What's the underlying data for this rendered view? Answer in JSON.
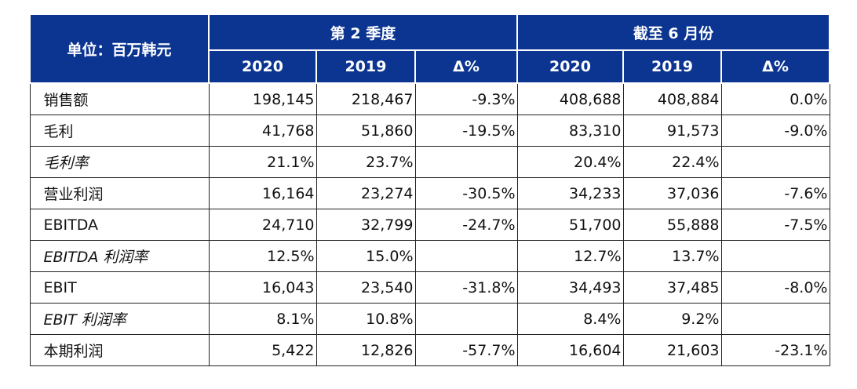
{
  "header": {
    "unit_label": "单位：百万韩元",
    "group_q2": "第 2 季度",
    "group_ytd": "截至 6 月份",
    "col_2020": "2020",
    "col_2019": "2019",
    "col_delta": "Δ%"
  },
  "rows": [
    {
      "label": "销售额",
      "q2_2020": "198,145",
      "q2_2019": "218,467",
      "q2_delta": "-9.3%",
      "h1_2020": "408,688",
      "h1_2019": "408,884",
      "h1_delta": "0.0%"
    },
    {
      "label": "毛利",
      "q2_2020": "41,768",
      "q2_2019": "51,860",
      "q2_delta": "-19.5%",
      "h1_2020": "83,310",
      "h1_2019": "91,573",
      "h1_delta": "-9.0%"
    },
    {
      "label": "毛利率",
      "q2_2020": "21.1%",
      "q2_2019": "23.7%",
      "q2_delta": "",
      "h1_2020": "20.4%",
      "h1_2019": "22.4%",
      "h1_delta": ""
    },
    {
      "label": "营业利润",
      "q2_2020": "16,164",
      "q2_2019": "23,274",
      "q2_delta": "-30.5%",
      "h1_2020": "34,233",
      "h1_2019": "37,036",
      "h1_delta": "-7.6%"
    },
    {
      "label": "EBITDA",
      "q2_2020": "24,710",
      "q2_2019": "32,799",
      "q2_delta": "-24.7%",
      "h1_2020": "51,700",
      "h1_2019": "55,888",
      "h1_delta": "-7.5%"
    },
    {
      "label": "EBITDA 利润率",
      "q2_2020": "12.5%",
      "q2_2019": "15.0%",
      "q2_delta": "",
      "h1_2020": "12.7%",
      "h1_2019": "13.7%",
      "h1_delta": ""
    },
    {
      "label": "EBIT",
      "q2_2020": "16,043",
      "q2_2019": "23,540",
      "q2_delta": "-31.8%",
      "h1_2020": "34,493",
      "h1_2019": "37,485",
      "h1_delta": "-8.0%"
    },
    {
      "label": "EBIT 利润率",
      "q2_2020": "8.1%",
      "q2_2019": "10.8%",
      "q2_delta": "",
      "h1_2020": "8.4%",
      "h1_2019": "9.2%",
      "h1_delta": ""
    },
    {
      "label": "本期利润",
      "q2_2020": "5,422",
      "q2_2019": "12,826",
      "q2_delta": "-57.7%",
      "h1_2020": "16,604",
      "h1_2019": "21,603",
      "h1_delta": "-23.1%"
    }
  ]
}
